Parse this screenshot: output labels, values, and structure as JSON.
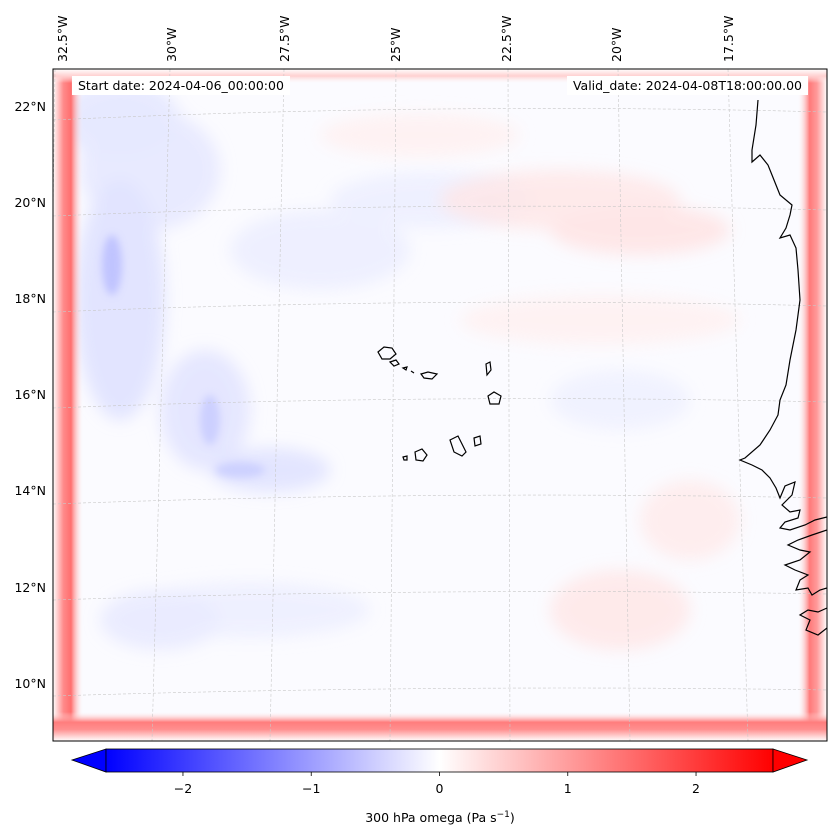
{
  "header": {
    "start_text": "Start date: 2024-04-06_00:00:00",
    "valid_text": "Valid_date: 2024-04-08T18:00:00.00"
  },
  "longitude_labels": [
    "32.5°W",
    "30°W",
    "27.5°W",
    "25°W",
    "22.5°W",
    "20°W",
    "17.5°W"
  ],
  "latitude_labels": [
    "22°N",
    "20°N",
    "18°N",
    "16°N",
    "14°N",
    "12°N",
    "10°N"
  ],
  "colorbar": {
    "ticks": [
      "−2",
      "−1",
      "0",
      "1",
      "2"
    ],
    "tick_values": [
      -2,
      -1,
      0,
      1,
      2
    ],
    "range": [
      -2.6,
      2.6
    ],
    "label": "300 hPa omega (Pa s",
    "label_sup": "−1",
    "label_end": ")",
    "color_min": "#0000ff",
    "color_mid": "#ffffff",
    "color_max": "#ff0000",
    "extend": "both"
  },
  "map": {
    "gridlines": "dashed",
    "coastline_color": "#000000",
    "field_note_colors": {
      "boundary": "#ff4d4d",
      "negative": "#c8c8ff",
      "positive": "#ffd6d6"
    }
  }
}
